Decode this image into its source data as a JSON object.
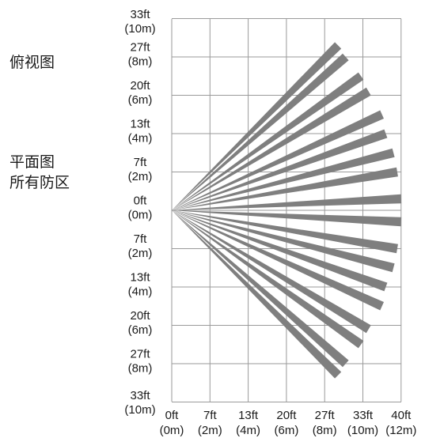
{
  "labels": {
    "top_view": "俯视图",
    "plan_view": "平面图",
    "all_zones": "所有防区"
  },
  "y_axis": [
    {
      "ft": "33ft",
      "m": "(10m)"
    },
    {
      "ft": "27ft",
      "m": "(8m)"
    },
    {
      "ft": "20ft",
      "m": "(6m)"
    },
    {
      "ft": "13ft",
      "m": "(4m)"
    },
    {
      "ft": "7ft",
      "m": "(2m)"
    },
    {
      "ft": "0ft",
      "m": "(0m)"
    },
    {
      "ft": "7ft",
      "m": "(2m)"
    },
    {
      "ft": "13ft",
      "m": "(4m)"
    },
    {
      "ft": "20ft",
      "m": "(6m)"
    },
    {
      "ft": "27ft",
      "m": "(8m)"
    },
    {
      "ft": "33ft",
      "m": "(10m)"
    }
  ],
  "x_axis": [
    {
      "ft": "0ft",
      "m": "(0m)"
    },
    {
      "ft": "7ft",
      "m": "(2m)"
    },
    {
      "ft": "13ft",
      "m": "(4m)"
    },
    {
      "ft": "20ft",
      "m": "(6m)"
    },
    {
      "ft": "27ft",
      "m": "(8m)"
    },
    {
      "ft": "33ft",
      "m": "(10m)"
    },
    {
      "ft": "40ft",
      "m": "(12m)"
    }
  ],
  "beam_color": "#7f7f7f",
  "grid_color": "#9a9a9a",
  "beams": [
    {
      "end_x_m": 8.7,
      "end_y_m": 8.6
    },
    {
      "end_x_m": 9.1,
      "end_y_m": 8.0
    },
    {
      "end_x_m": 9.9,
      "end_y_m": 7.0
    },
    {
      "end_x_m": 10.3,
      "end_y_m": 6.2
    },
    {
      "end_x_m": 11.0,
      "end_y_m": 5.0
    },
    {
      "end_x_m": 11.2,
      "end_y_m": 4.0
    },
    {
      "end_x_m": 11.6,
      "end_y_m": 3.0
    },
    {
      "end_x_m": 11.8,
      "end_y_m": 2.0
    },
    {
      "end_x_m": 12.0,
      "end_y_m": 0.6
    },
    {
      "end_x_m": 12.0,
      "end_y_m": -0.6
    },
    {
      "end_x_m": 11.8,
      "end_y_m": -2.0
    },
    {
      "end_x_m": 11.6,
      "end_y_m": -3.0
    },
    {
      "end_x_m": 11.2,
      "end_y_m": -4.0
    },
    {
      "end_x_m": 11.0,
      "end_y_m": -5.0
    },
    {
      "end_x_m": 10.3,
      "end_y_m": -6.2
    },
    {
      "end_x_m": 9.9,
      "end_y_m": -7.0
    },
    {
      "end_x_m": 9.1,
      "end_y_m": -8.0
    },
    {
      "end_x_m": 8.7,
      "end_y_m": -8.6
    }
  ]
}
